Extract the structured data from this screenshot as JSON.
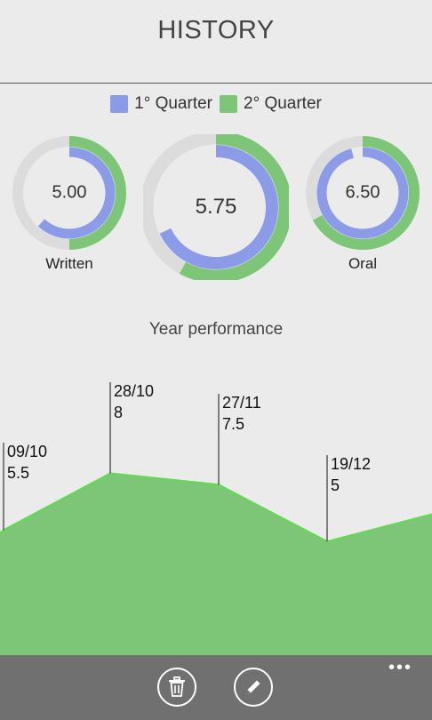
{
  "header": {
    "title": "HISTORY"
  },
  "legend": [
    {
      "label": "1° Quarter",
      "color": "#8b9be8"
    },
    {
      "label": "2° Quarter",
      "color": "#7dc677"
    }
  ],
  "donuts": [
    {
      "label": "Written",
      "value": "5.00",
      "q1_fraction": 0.62,
      "q2_fraction": 0.5
    },
    {
      "label": "",
      "value": "5.75",
      "q1_fraction": 0.68,
      "q2_fraction": 0.58
    },
    {
      "label": "Oral",
      "value": "6.50",
      "q1_fraction": 0.96,
      "q2_fraction": 0.67
    }
  ],
  "performance": {
    "title": "Year performance"
  },
  "chart_data": {
    "type": "area",
    "title": "Year performance",
    "x": [
      "09/10",
      "28/10",
      "27/11",
      "19/12"
    ],
    "values": [
      5.5,
      8,
      7.5,
      5
    ],
    "labels": [
      {
        "date": "09/10",
        "value": "5.5"
      },
      {
        "date": "28/10",
        "value": "8"
      },
      {
        "date": "27/11",
        "value": "7.5"
      },
      {
        "date": "19/12",
        "value": "5"
      }
    ],
    "fill_color": "#7dc677",
    "line_color": "#5fdc4f"
  },
  "appbar": {
    "delete_icon": "trash-icon",
    "edit_icon": "pencil-icon",
    "more_label": "•••"
  }
}
